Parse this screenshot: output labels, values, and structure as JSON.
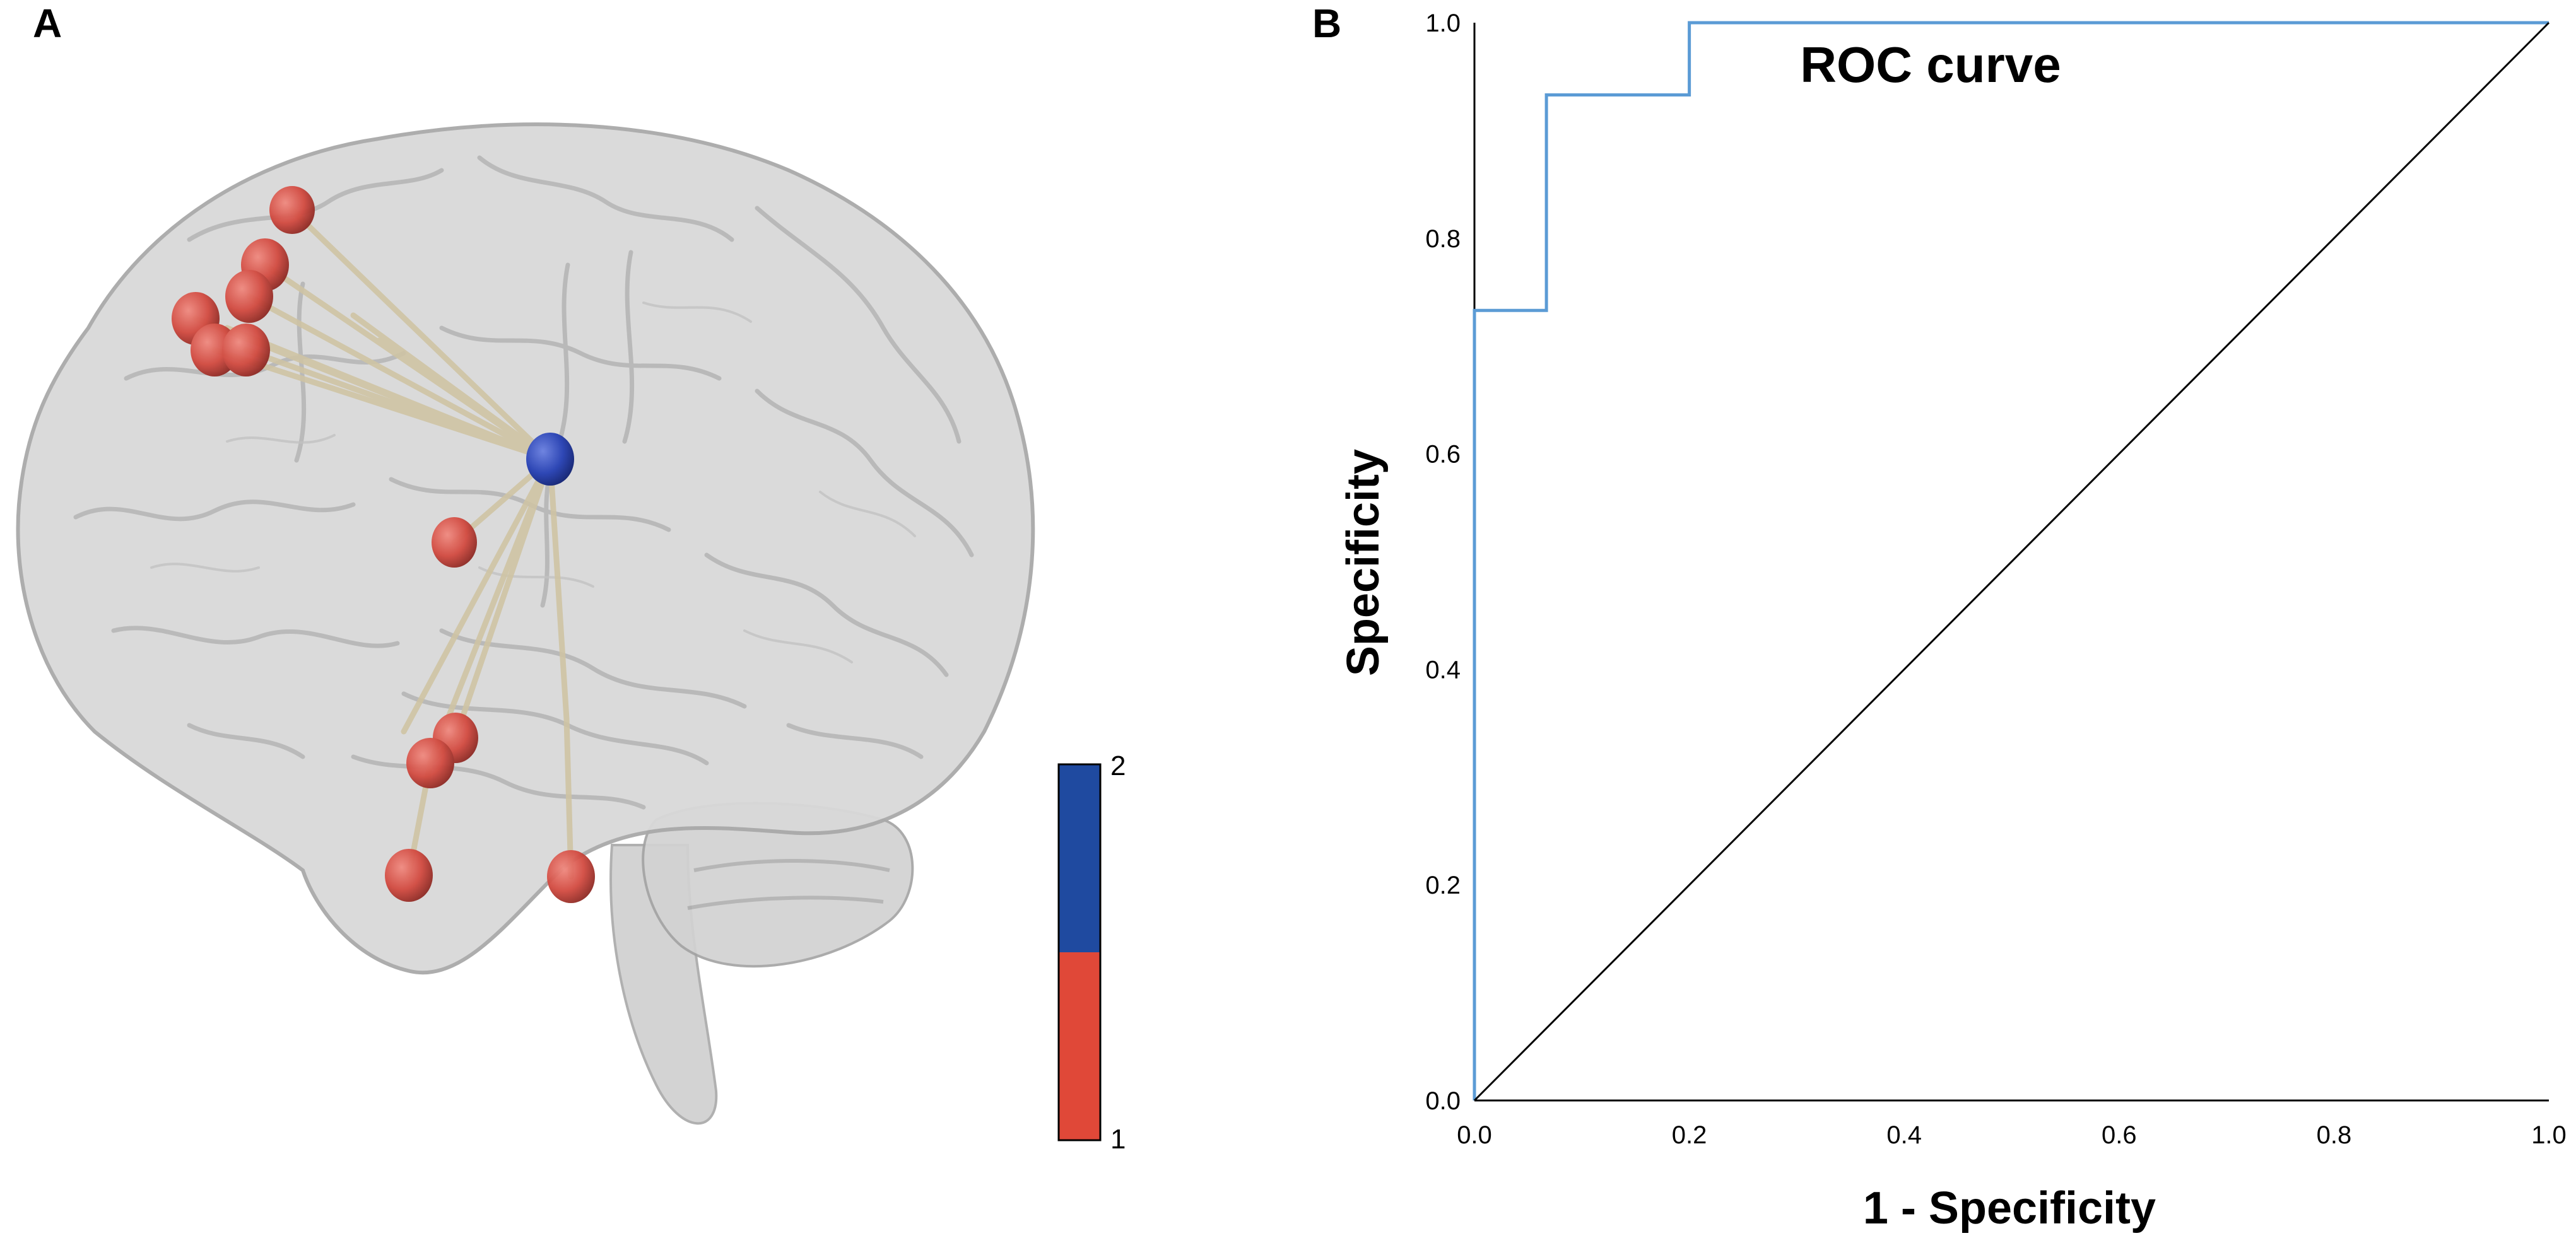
{
  "panels": {
    "a": {
      "label": "A"
    },
    "b": {
      "label": "B"
    }
  },
  "brain_network": {
    "colorbar": {
      "max_label": "2",
      "min_label": "1",
      "colors": {
        "high": "#1f4aa0",
        "low": "#e04838"
      }
    },
    "node_colors": {
      "hub": "#2e47b5",
      "region": "#d8524a"
    },
    "edge_color": "#cfc4a4",
    "brain_color": "#c8c8c8"
  },
  "chart_data": {
    "type": "line",
    "title": "ROC curve",
    "xlabel": "1 - Specificity",
    "ylabel": "Specificity",
    "xlim": [
      0.0,
      1.0
    ],
    "ylim": [
      0.0,
      1.0
    ],
    "xticks": [
      "0.0",
      "0.2",
      "0.4",
      "0.6",
      "0.8",
      "1.0"
    ],
    "yticks": [
      "0.0",
      "0.2",
      "0.4",
      "0.6",
      "0.8",
      "1.0"
    ],
    "grid": false,
    "series": [
      {
        "color": "#5b9bd5",
        "x": [
          0.0,
          0.0,
          0.067,
          0.067,
          0.2,
          0.2,
          1.0
        ],
        "y": [
          0.0,
          0.733,
          0.733,
          0.933,
          0.933,
          1.0,
          1.0
        ]
      },
      {
        "color": "#000000",
        "x": [
          0.0,
          1.0
        ],
        "y": [
          0.0,
          1.0
        ]
      }
    ]
  }
}
